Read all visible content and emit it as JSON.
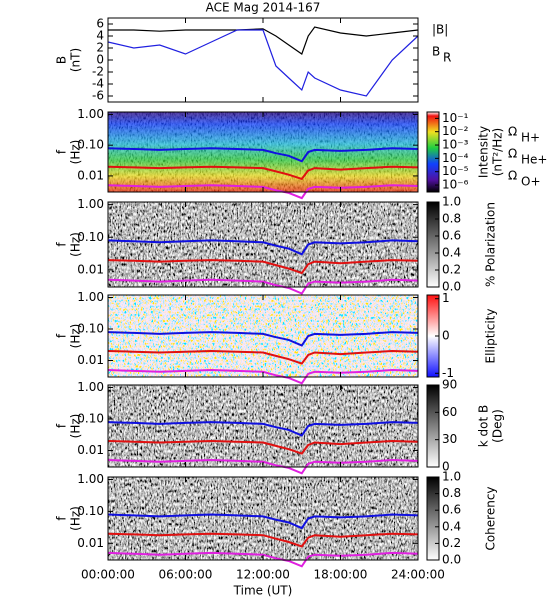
{
  "chart_data": [
    {
      "type": "line",
      "title": "ACE Mag 2014-167",
      "ylabel": [
        "B",
        "(nT)"
      ],
      "x": [
        0,
        2,
        4,
        6,
        8,
        10,
        12,
        13,
        14,
        15,
        15.5,
        16,
        18,
        20,
        22,
        24
      ],
      "xlim": [
        0,
        24
      ],
      "xticks": [
        0,
        6,
        12,
        18,
        24
      ],
      "ylim": [
        -7,
        7
      ],
      "yticks": [
        -6,
        -4,
        -2,
        0,
        2,
        4,
        6
      ],
      "series": [
        {
          "name": "|B|",
          "color": "#000000",
          "values": [
            5,
            5,
            4.8,
            5,
            5,
            5,
            5.2,
            4,
            2.5,
            1,
            4,
            5.5,
            4.5,
            4,
            4.5,
            5
          ]
        },
        {
          "name": "B",
          "subscript": "R",
          "color": "#2020e0",
          "values": [
            3,
            2,
            2.5,
            1,
            3,
            5,
            5,
            -1,
            -3,
            -5,
            -2,
            -3,
            -5,
            -6,
            0,
            4
          ]
        }
      ]
    },
    {
      "type": "spectrogram",
      "colormap": "rainbow",
      "ylabel": [
        "f",
        "(Hz)"
      ],
      "ylog": true,
      "x": [
        0,
        2,
        4,
        6,
        8,
        10,
        12,
        13,
        14,
        15,
        15.5,
        16,
        18,
        20,
        22,
        24
      ],
      "xlim": [
        0,
        24
      ],
      "xticks": [
        0,
        6,
        12,
        18,
        24
      ],
      "ylim": [
        0.003,
        1.2
      ],
      "yticks": [
        {
          "value": 0.01,
          "label": "0.01"
        },
        {
          "value": 0.1,
          "label": "0.10"
        },
        {
          "value": 1,
          "label": "1.00"
        }
      ],
      "clabel": [
        "Intensity",
        "(nT²/Hz)"
      ],
      "clog": true,
      "clim": [
        3e-07,
        0.3
      ],
      "cticks": [
        {
          "value": 0.1,
          "label": "10⁻¹"
        },
        {
          "value": 0.01,
          "label": "10⁻²"
        },
        {
          "value": 0.001,
          "label": "10⁻³"
        },
        {
          "value": 0.0001,
          "label": "10⁻⁴"
        },
        {
          "value": 1e-05,
          "label": "10⁻⁵"
        },
        {
          "value": 1e-06,
          "label": "10⁻⁶"
        }
      ],
      "series": [
        {
          "name": "Ω",
          "subscript": "H+",
          "color": "#1010e0",
          "values": [
            0.08,
            0.075,
            0.07,
            0.075,
            0.08,
            0.075,
            0.07,
            0.055,
            0.045,
            0.03,
            0.06,
            0.07,
            0.065,
            0.07,
            0.08,
            0.075
          ]
        },
        {
          "name": "Ω",
          "subscript": "He+",
          "color": "#e01010",
          "values": [
            0.02,
            0.019,
            0.018,
            0.019,
            0.02,
            0.019,
            0.018,
            0.014,
            0.011,
            0.008,
            0.015,
            0.018,
            0.016,
            0.018,
            0.02,
            0.019
          ]
        },
        {
          "name": "Ω",
          "subscript": "O+",
          "color": "#e020e0",
          "values": [
            0.005,
            0.0047,
            0.0044,
            0.0047,
            0.005,
            0.0047,
            0.0044,
            0.0034,
            0.0028,
            0.0019,
            0.0038,
            0.0044,
            0.0041,
            0.0044,
            0.005,
            0.0047
          ]
        }
      ]
    },
    {
      "type": "spectrogram",
      "colormap": "gray",
      "ylabel": [
        "f",
        "(Hz)"
      ],
      "ylog": true,
      "x": [
        0,
        2,
        4,
        6,
        8,
        10,
        12,
        13,
        14,
        15,
        15.5,
        16,
        18,
        20,
        22,
        24
      ],
      "xlim": [
        0,
        24
      ],
      "xticks": [
        0,
        6,
        12,
        18,
        24
      ],
      "ylim": [
        0.003,
        1.2
      ],
      "yticks": [
        {
          "value": 0.01,
          "label": "0.01"
        },
        {
          "value": 0.1,
          "label": "0.10"
        },
        {
          "value": 1,
          "label": "1.00"
        }
      ],
      "clabel": [
        "% Polarization"
      ],
      "clim": [
        0,
        1
      ],
      "cticks": [
        {
          "value": 0,
          "label": "0.0"
        },
        0.2,
        0.4,
        0.6,
        0.8,
        {
          "value": 1,
          "label": "1.0"
        }
      ],
      "series": [
        {
          "color": "#1010e0",
          "values": [
            0.08,
            0.075,
            0.07,
            0.075,
            0.08,
            0.075,
            0.07,
            0.055,
            0.045,
            0.03,
            0.06,
            0.07,
            0.065,
            0.07,
            0.08,
            0.075
          ]
        },
        {
          "color": "#e01010",
          "values": [
            0.02,
            0.019,
            0.018,
            0.019,
            0.02,
            0.019,
            0.018,
            0.014,
            0.011,
            0.008,
            0.015,
            0.018,
            0.016,
            0.018,
            0.02,
            0.019
          ]
        },
        {
          "color": "#e020e0",
          "values": [
            0.005,
            0.0047,
            0.0044,
            0.0047,
            0.005,
            0.0047,
            0.0044,
            0.0034,
            0.0028,
            0.0019,
            0.0038,
            0.0044,
            0.0041,
            0.0044,
            0.005,
            0.0047
          ]
        }
      ]
    },
    {
      "type": "spectrogram",
      "colormap": "bwr",
      "ylabel": [
        "f",
        "(Hz)"
      ],
      "ylog": true,
      "x": [
        0,
        2,
        4,
        6,
        8,
        10,
        12,
        13,
        14,
        15,
        15.5,
        16,
        18,
        20,
        22,
        24
      ],
      "xlim": [
        0,
        24
      ],
      "xticks": [
        0,
        6,
        12,
        18,
        24
      ],
      "ylim": [
        0.003,
        1.2
      ],
      "yticks": [
        {
          "value": 0.01,
          "label": "0.01"
        },
        {
          "value": 0.1,
          "label": "0.10"
        },
        {
          "value": 1,
          "label": "1.00"
        }
      ],
      "clabel": [
        "Ellipticity"
      ],
      "clim": [
        -1.1,
        1.1
      ],
      "cticks": [
        -1,
        0,
        1
      ],
      "series": [
        {
          "color": "#1010e0",
          "values": [
            0.08,
            0.075,
            0.07,
            0.075,
            0.08,
            0.075,
            0.07,
            0.055,
            0.045,
            0.03,
            0.06,
            0.07,
            0.065,
            0.07,
            0.08,
            0.075
          ]
        },
        {
          "color": "#e01010",
          "values": [
            0.02,
            0.019,
            0.018,
            0.019,
            0.02,
            0.019,
            0.018,
            0.014,
            0.011,
            0.008,
            0.015,
            0.018,
            0.016,
            0.018,
            0.02,
            0.019
          ]
        },
        {
          "color": "#e020e0",
          "values": [
            0.005,
            0.0047,
            0.0044,
            0.0047,
            0.005,
            0.0047,
            0.0044,
            0.0034,
            0.0028,
            0.0019,
            0.0038,
            0.0044,
            0.0041,
            0.0044,
            0.005,
            0.0047
          ]
        }
      ]
    },
    {
      "type": "spectrogram",
      "colormap": "gray",
      "ylabel": [
        "f",
        "(Hz)"
      ],
      "ylog": true,
      "x": [
        0,
        2,
        4,
        6,
        8,
        10,
        12,
        13,
        14,
        15,
        15.5,
        16,
        18,
        20,
        22,
        24
      ],
      "xlim": [
        0,
        24
      ],
      "xticks": [
        0,
        6,
        12,
        18,
        24
      ],
      "ylim": [
        0.003,
        1.2
      ],
      "yticks": [
        {
          "value": 0.01,
          "label": "0.01"
        },
        {
          "value": 0.1,
          "label": "0.10"
        },
        {
          "value": 1,
          "label": "1.00"
        }
      ],
      "clabel": [
        "k dot B",
        "(Deg)"
      ],
      "clim": [
        0,
        90
      ],
      "cticks": [
        0,
        30,
        60,
        90
      ],
      "series": [
        {
          "color": "#1010e0",
          "values": [
            0.08,
            0.075,
            0.07,
            0.075,
            0.08,
            0.075,
            0.07,
            0.055,
            0.045,
            0.03,
            0.06,
            0.07,
            0.065,
            0.07,
            0.08,
            0.075
          ]
        },
        {
          "color": "#e01010",
          "values": [
            0.02,
            0.019,
            0.018,
            0.019,
            0.02,
            0.019,
            0.018,
            0.014,
            0.011,
            0.008,
            0.015,
            0.018,
            0.016,
            0.018,
            0.02,
            0.019
          ]
        },
        {
          "color": "#e020e0",
          "values": [
            0.005,
            0.0047,
            0.0044,
            0.0047,
            0.005,
            0.0047,
            0.0044,
            0.0034,
            0.0028,
            0.0019,
            0.0038,
            0.0044,
            0.0041,
            0.0044,
            0.005,
            0.0047
          ]
        }
      ]
    },
    {
      "type": "spectrogram",
      "colormap": "gray",
      "ylabel": [
        "f",
        "(Hz)"
      ],
      "ylog": true,
      "x": [
        0,
        2,
        4,
        6,
        8,
        10,
        12,
        13,
        14,
        15,
        15.5,
        16,
        18,
        20,
        22,
        24
      ],
      "xlim": [
        0,
        24
      ],
      "xticks": [
        {
          "value": 0,
          "label": "00:00:00"
        },
        {
          "value": 6,
          "label": "06:00:00"
        },
        {
          "value": 12,
          "label": "12:00:00"
        },
        {
          "value": 18,
          "label": "18:00:00"
        },
        {
          "value": 24,
          "label": "24:00:00"
        }
      ],
      "xlabel": "Time (UT)",
      "ylim": [
        0.003,
        1.2
      ],
      "yticks": [
        {
          "value": 0.01,
          "label": "0.01"
        },
        {
          "value": 0.1,
          "label": "0.10"
        },
        {
          "value": 1,
          "label": "1.00"
        }
      ],
      "clabel": [
        "Coherency"
      ],
      "clim": [
        0,
        1
      ],
      "cticks": [
        {
          "value": 0,
          "label": "0.0"
        },
        0.2,
        0.4,
        0.6,
        0.8,
        {
          "value": 1,
          "label": "1.0"
        }
      ],
      "series": [
        {
          "color": "#1010e0",
          "values": [
            0.08,
            0.075,
            0.07,
            0.075,
            0.08,
            0.075,
            0.07,
            0.055,
            0.045,
            0.03,
            0.06,
            0.07,
            0.065,
            0.07,
            0.08,
            0.075
          ]
        },
        {
          "color": "#e01010",
          "values": [
            0.02,
            0.019,
            0.018,
            0.019,
            0.02,
            0.019,
            0.018,
            0.014,
            0.011,
            0.008,
            0.015,
            0.018,
            0.016,
            0.018,
            0.02,
            0.019
          ]
        },
        {
          "color": "#e020e0",
          "values": [
            0.005,
            0.0047,
            0.0044,
            0.0047,
            0.005,
            0.0047,
            0.0044,
            0.0034,
            0.0028,
            0.0019,
            0.0038,
            0.0044,
            0.0041,
            0.0044,
            0.005,
            0.0047
          ]
        }
      ]
    }
  ]
}
